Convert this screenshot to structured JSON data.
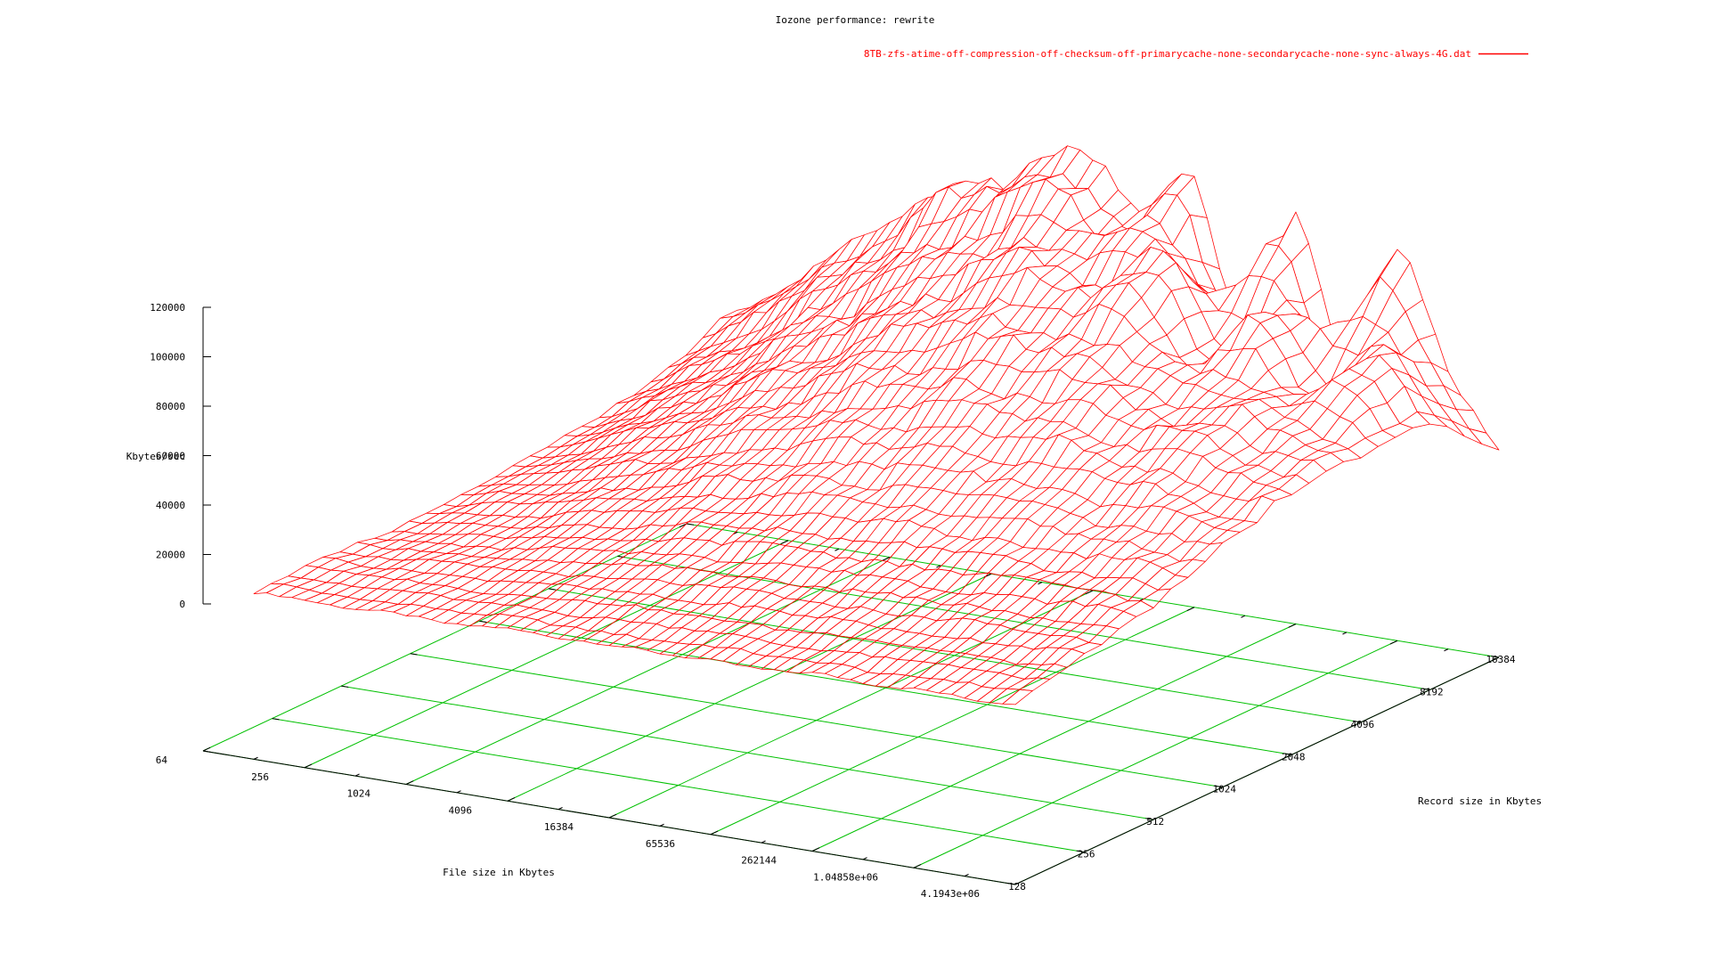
{
  "title": "Iozone performance: rewrite",
  "legend": {
    "label": "8TB-zfs-atime-off-compression-off-checksum-off-primarycache-none-secondarycache-none-sync-always-4G.dat",
    "color": "#ff0000"
  },
  "colors": {
    "surface": "#ff0000",
    "grid": "#00c000",
    "axis": "#000000",
    "background": "#ffffff"
  },
  "axes": {
    "x": {
      "label": "File size in Kbytes",
      "tick_labels": [
        "64",
        "256",
        "1024",
        "4096",
        "16384",
        "65536",
        "262144",
        "1.04858e+06",
        "4.1943e+06"
      ],
      "scale": "log2",
      "range": [
        64,
        4194304
      ]
    },
    "y": {
      "label": "Record size in Kbytes",
      "tick_labels": [
        "128",
        "256",
        "512",
        "1024",
        "2048",
        "4096",
        "8192",
        "16384"
      ],
      "scale": "log2",
      "range": [
        128,
        16384
      ]
    },
    "z": {
      "label": "Kbytes/sec",
      "tick_labels": [
        "0",
        "20000",
        "40000",
        "60000",
        "80000",
        "100000",
        "120000"
      ],
      "range": [
        0,
        120000
      ]
    }
  },
  "chart_data": {
    "type": "surface",
    "title": "Iozone performance: rewrite",
    "xlabel": "File size in Kbytes",
    "ylabel": "Record size in Kbytes",
    "zlabel": "Kbytes/sec",
    "zlim": [
      0,
      120000
    ],
    "grid": true,
    "legend_position": "top-right",
    "x_file_size_kb": [
      128,
      256,
      512,
      1024,
      2048,
      4096,
      8192,
      16384,
      32768,
      65536,
      131072,
      262144,
      524288,
      1048576,
      2097152,
      4194304
    ],
    "y_record_size_kb": [
      128,
      256,
      512,
      1024,
      2048,
      4096,
      8192,
      16384
    ],
    "z_kbytes_per_sec": [
      [
        8000,
        8000,
        8000,
        9000,
        9000,
        10000,
        10000,
        10000,
        11000,
        11000,
        11000,
        12000,
        12000,
        13000,
        13000,
        14000
      ],
      [
        9000,
        9000,
        10000,
        11000,
        12000,
        14000,
        15000,
        16000,
        17000,
        17000,
        18000,
        18000,
        19000,
        19000,
        20000,
        20000
      ],
      [
        7000,
        9000,
        11000,
        14000,
        17000,
        20000,
        23000,
        25000,
        26000,
        27000,
        27000,
        28000,
        28000,
        29000,
        29000,
        28000
      ],
      [
        8000,
        12000,
        16000,
        21000,
        26000,
        31000,
        35000,
        38000,
        40000,
        41000,
        42000,
        42000,
        41000,
        40000,
        39000,
        38000
      ],
      [
        10000,
        16000,
        23000,
        30000,
        37000,
        44000,
        50000,
        55000,
        58000,
        60000,
        60000,
        58000,
        56000,
        54000,
        50000,
        46000
      ],
      [
        14000,
        22000,
        31000,
        41000,
        51000,
        60000,
        68000,
        74000,
        78000,
        80000,
        76000,
        70000,
        62000,
        65000,
        55000,
        50000
      ],
      [
        20000,
        30000,
        42000,
        55000,
        67000,
        78000,
        88000,
        95000,
        97000,
        92000,
        96000,
        65000,
        85000,
        58000,
        72000,
        48000
      ],
      [
        30000,
        45000,
        60000,
        75000,
        90000,
        102000,
        112000,
        115000,
        95000,
        112000,
        58000,
        105000,
        52000,
        95000,
        55000,
        25000
      ]
    ]
  }
}
